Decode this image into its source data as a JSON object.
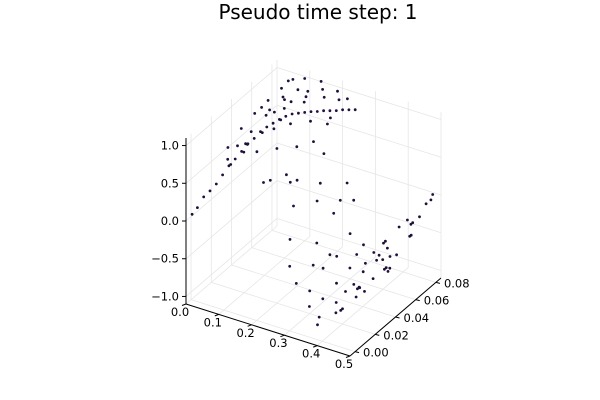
{
  "chart_data": {
    "type": "scatter",
    "projection": "3d",
    "title": "Pseudo time step: 1",
    "xlabel": "",
    "ylabel": "",
    "zlabel": "",
    "legend": "none",
    "grid": true,
    "marker_color": "#1f0f3a",
    "xlim": [
      0.0,
      0.5
    ],
    "ylim": [
      -0.005,
      0.085
    ],
    "zlim": [
      -1.1,
      1.1
    ],
    "x_ticks": [
      "0.0",
      "0.1",
      "0.2",
      "0.3",
      "0.4",
      "0.5"
    ],
    "y_ticks": [
      "0.00",
      "0.02",
      "0.04",
      "0.06",
      "0.08"
    ],
    "z_ticks": [
      "−1.0",
      "−0.5",
      "0.0",
      "0.5",
      "1.0"
    ],
    "points": [
      [
        0.0,
        0.001,
        0.02
      ],
      [
        0.01,
        0.003,
        0.1
      ],
      [
        0.02,
        0.006,
        0.22
      ],
      [
        0.03,
        0.009,
        0.28
      ],
      [
        0.04,
        0.012,
        0.35
      ],
      [
        0.05,
        0.015,
        0.45
      ],
      [
        0.06,
        0.018,
        0.55
      ],
      [
        0.07,
        0.021,
        0.62
      ],
      [
        0.08,
        0.024,
        0.7
      ],
      [
        0.09,
        0.027,
        0.78
      ],
      [
        0.1,
        0.03,
        0.83
      ],
      [
        0.11,
        0.033,
        0.9
      ],
      [
        0.12,
        0.036,
        0.94
      ],
      [
        0.13,
        0.039,
        0.97
      ],
      [
        0.14,
        0.042,
        1.0
      ],
      [
        0.15,
        0.045,
        1.02
      ],
      [
        0.16,
        0.048,
        1.03
      ],
      [
        0.17,
        0.051,
        1.02
      ],
      [
        0.18,
        0.054,
        1.01
      ],
      [
        0.19,
        0.057,
        1.0
      ],
      [
        0.2,
        0.06,
        0.98
      ],
      [
        0.21,
        0.063,
        0.97
      ],
      [
        0.22,
        0.066,
        0.95
      ],
      [
        0.23,
        0.069,
        0.93
      ],
      [
        0.24,
        0.072,
        0.92
      ],
      [
        0.25,
        0.075,
        0.9
      ],
      [
        0.26,
        0.078,
        0.88
      ],
      [
        0.02,
        0.03,
        0.6
      ],
      [
        0.03,
        0.04,
        0.75
      ],
      [
        0.04,
        0.05,
        0.85
      ],
      [
        0.05,
        0.06,
        0.92
      ],
      [
        0.06,
        0.07,
        0.98
      ],
      [
        0.07,
        0.078,
        1.02
      ],
      [
        0.08,
        0.02,
        0.82
      ],
      [
        0.09,
        0.045,
        0.95
      ],
      [
        0.1,
        0.06,
        1.0
      ],
      [
        0.11,
        0.07,
        1.03
      ],
      [
        0.12,
        0.015,
        0.96
      ],
      [
        0.13,
        0.05,
        1.04
      ],
      [
        0.14,
        0.025,
        1.02
      ],
      [
        0.15,
        0.065,
        1.05
      ],
      [
        0.16,
        0.03,
        1.04
      ],
      [
        0.17,
        0.075,
        1.06
      ],
      [
        0.03,
        0.06,
        0.8
      ],
      [
        0.05,
        0.02,
        0.6
      ],
      [
        0.06,
        0.04,
        0.75
      ],
      [
        0.07,
        0.055,
        0.88
      ],
      [
        0.08,
        0.065,
        0.95
      ],
      [
        0.09,
        0.01,
        0.7
      ],
      [
        0.1,
        0.05,
        0.95
      ],
      [
        0.11,
        0.02,
        0.88
      ],
      [
        0.12,
        0.06,
        1.0
      ],
      [
        0.13,
        0.01,
        0.92
      ],
      [
        0.14,
        0.07,
        1.05
      ],
      [
        0.15,
        0.04,
        1.03
      ],
      [
        0.16,
        0.06,
        1.05
      ],
      [
        0.17,
        0.01,
        0.98
      ],
      [
        0.18,
        0.04,
        1.02
      ],
      [
        0.19,
        0.07,
        1.04
      ],
      [
        0.2,
        0.02,
        0.95
      ],
      [
        0.21,
        0.05,
        0.98
      ],
      [
        0.22,
        0.075,
        0.99
      ],
      [
        0.23,
        0.03,
        0.9
      ],
      [
        0.24,
        0.06,
        0.95
      ],
      [
        0.25,
        0.04,
        0.88
      ],
      [
        0.26,
        0.01,
        0.8
      ],
      [
        0.18,
        0.02,
        0.5
      ],
      [
        0.2,
        0.04,
        0.3
      ],
      [
        0.22,
        0.03,
        0.1
      ],
      [
        0.23,
        0.05,
        -0.05
      ],
      [
        0.24,
        0.02,
        -0.2
      ],
      [
        0.25,
        0.06,
        -0.3
      ],
      [
        0.26,
        0.04,
        -0.45
      ],
      [
        0.27,
        0.01,
        -0.4
      ],
      [
        0.28,
        0.03,
        -0.6
      ],
      [
        0.29,
        0.05,
        -0.7
      ],
      [
        0.3,
        0.02,
        -0.8
      ],
      [
        0.31,
        0.07,
        -0.75
      ],
      [
        0.32,
        0.04,
        -0.9
      ],
      [
        0.33,
        0.01,
        -0.85
      ],
      [
        0.34,
        0.06,
        -0.95
      ],
      [
        0.35,
        0.03,
        -1.0
      ],
      [
        0.36,
        0.05,
        -1.02
      ],
      [
        0.37,
        0.005,
        -0.98
      ],
      [
        0.38,
        0.04,
        -1.0
      ],
      [
        0.39,
        0.07,
        -0.95
      ],
      [
        0.4,
        0.02,
        -0.9
      ],
      [
        0.41,
        0.06,
        -0.8
      ],
      [
        0.42,
        0.03,
        -0.7
      ],
      [
        0.43,
        0.05,
        -0.55
      ],
      [
        0.44,
        0.01,
        -0.5
      ],
      [
        0.45,
        0.04,
        -0.35
      ],
      [
        0.46,
        0.07,
        -0.25
      ],
      [
        0.47,
        0.02,
        -0.2
      ],
      [
        0.48,
        0.05,
        -0.05
      ],
      [
        0.49,
        0.08,
        0.05
      ],
      [
        0.5,
        0.03,
        0.02
      ],
      [
        0.3,
        0.06,
        -0.5
      ],
      [
        0.31,
        0.03,
        -0.6
      ],
      [
        0.33,
        0.05,
        -0.8
      ],
      [
        0.34,
        0.02,
        -0.85
      ],
      [
        0.35,
        0.07,
        -0.9
      ],
      [
        0.36,
        0.01,
        -0.95
      ],
      [
        0.37,
        0.06,
        -1.0
      ],
      [
        0.38,
        0.02,
        -0.98
      ],
      [
        0.39,
        0.045,
        -0.97
      ],
      [
        0.4,
        0.065,
        -0.92
      ],
      [
        0.41,
        0.015,
        -0.85
      ],
      [
        0.42,
        0.055,
        -0.75
      ],
      [
        0.43,
        0.025,
        -0.65
      ],
      [
        0.44,
        0.075,
        -0.5
      ],
      [
        0.45,
        0.015,
        -0.45
      ],
      [
        0.46,
        0.045,
        -0.3
      ],
      [
        0.47,
        0.065,
        -0.2
      ],
      [
        0.48,
        0.025,
        -0.1
      ],
      [
        0.49,
        0.055,
        0.0
      ],
      [
        0.5,
        0.075,
        0.05
      ],
      [
        0.19,
        0.01,
        0.6
      ],
      [
        0.2,
        0.07,
        0.7
      ],
      [
        0.21,
        0.03,
        0.4
      ],
      [
        0.22,
        0.06,
        0.45
      ],
      [
        0.24,
        0.05,
        0.2
      ],
      [
        0.26,
        0.07,
        0.0
      ],
      [
        0.28,
        0.07,
        -0.2
      ],
      [
        0.29,
        0.01,
        -0.6
      ],
      [
        0.32,
        0.06,
        -0.75
      ],
      [
        0.34,
        0.08,
        -0.8
      ],
      [
        0.36,
        0.08,
        -0.95
      ],
      [
        0.38,
        0.08,
        -0.9
      ],
      [
        0.42,
        0.08,
        -0.6
      ],
      [
        0.45,
        0.08,
        -0.3
      ],
      [
        0.47,
        0.08,
        -0.1
      ],
      [
        0.05,
        0.08,
        0.95
      ],
      [
        0.1,
        0.08,
        1.05
      ],
      [
        0.15,
        0.08,
        1.08
      ],
      [
        0.2,
        0.08,
        1.02
      ],
      [
        0.23,
        0.08,
        0.96
      ],
      [
        0.27,
        0.06,
        -0.1
      ],
      [
        0.3,
        0.04,
        -0.55
      ]
    ]
  }
}
